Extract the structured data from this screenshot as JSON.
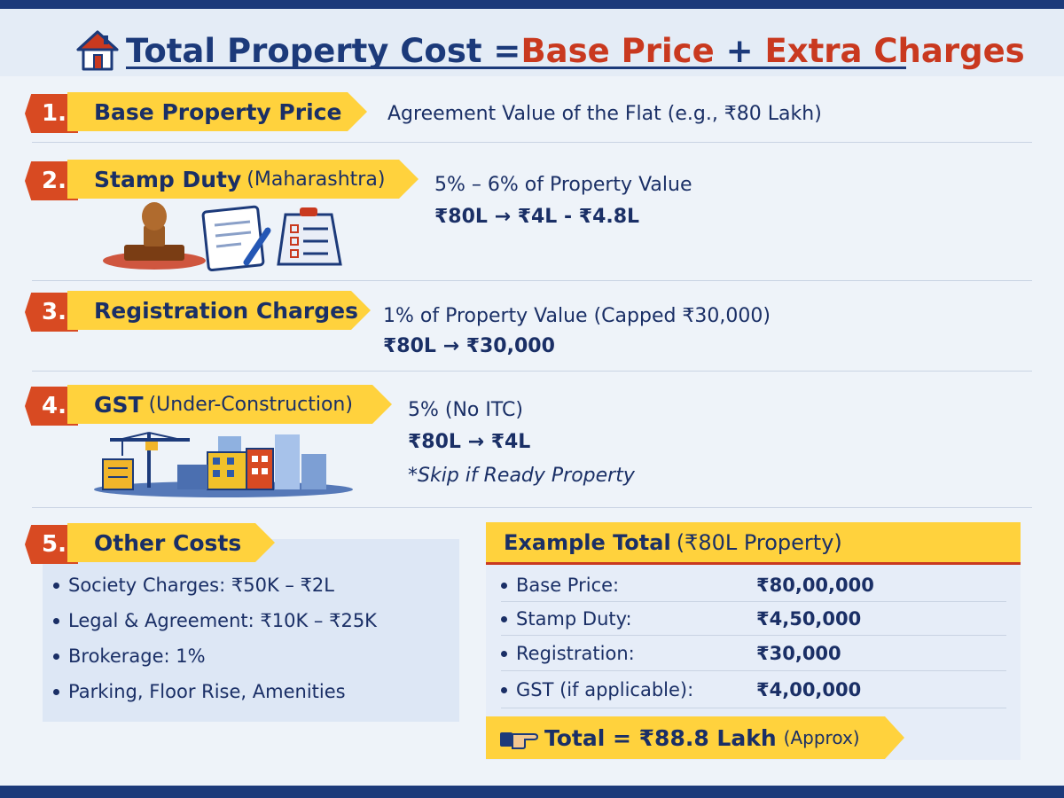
{
  "header": {
    "title_part1": "Total Property Cost = ",
    "title_part2": "Base Price",
    "title_part3": " + ",
    "title_part4": "Extra Charges"
  },
  "sections": [
    {
      "number": "1.",
      "title": "Base Property Price",
      "subtitle": "",
      "lines": [
        "Agreement Value of the Flat (e.g., ₹80 Lakh)"
      ]
    },
    {
      "number": "2.",
      "title": "Stamp Duty",
      "subtitle": "(Maharashtra)",
      "lines": [
        "5% – 6% of Property Value",
        "₹80L → ₹4L - ₹4.8L"
      ]
    },
    {
      "number": "3.",
      "title": "Registration Charges",
      "subtitle": "",
      "lines": [
        "1% of Property Value (Capped ₹30,000)",
        "₹80L → ₹30,000"
      ]
    },
    {
      "number": "4.",
      "title": "GST",
      "subtitle": "(Under-Construction)",
      "lines": [
        "5% (No ITC)",
        "₹80L → ₹4L",
        "*Skip if Ready Property"
      ]
    },
    {
      "number": "5.",
      "title": "Other Costs",
      "subtitle": "",
      "lines": []
    }
  ],
  "other_costs": [
    "Society Charges: ₹50K – ₹2L",
    "Legal & Agreement: ₹10K – ₹25K",
    "Brokerage: 1%",
    "Parking, Floor Rise, Amenities"
  ],
  "example": {
    "title": "Example Total",
    "subtitle": "(₹80L Property)",
    "rows": [
      {
        "label": "Base Price:",
        "value": "₹80,00,000"
      },
      {
        "label": "Stamp Duty:",
        "value": "₹4,50,000"
      },
      {
        "label": "Registration:",
        "value": "₹30,000"
      },
      {
        "label": "GST (if applicable):",
        "value": "₹4,00,000"
      }
    ],
    "total_label": "Total = ₹88.8 Lakh",
    "total_note": "(Approx)"
  },
  "icons": [
    "house-icon",
    "stamp-icon",
    "document-pen-icon",
    "checklist-icon",
    "crane-icon",
    "buildings-icon",
    "pointing-hand-icon"
  ],
  "colors": {
    "navy": "#1c3a7a",
    "red": "#c9391f",
    "yellow": "#ffd23d",
    "orange_badge": "#d84a22",
    "background": "#eef3f9"
  }
}
